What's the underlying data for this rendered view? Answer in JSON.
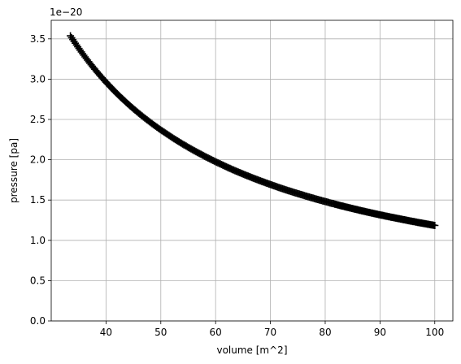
{
  "chart_data": {
    "type": "scatter",
    "marker": "+",
    "marker_color": "#000000",
    "grid": true,
    "xlabel": "volume [m^2]",
    "ylabel": "pressure [pa]",
    "y_offset_label": "1e−20",
    "xlim": [
      30,
      103.3
    ],
    "ylim": [
      0,
      3.73
    ],
    "xticks": [
      40,
      50,
      60,
      70,
      80,
      90,
      100
    ],
    "xtick_labels": [
      "40",
      "50",
      "60",
      "70",
      "80",
      "90",
      "100"
    ],
    "yticks": [
      0.0,
      0.5,
      1.0,
      1.5,
      2.0,
      2.5,
      3.0,
      3.5
    ],
    "ytick_labels": [
      "0.0",
      "0.5",
      "1.0",
      "1.5",
      "2.0",
      "2.5",
      "3.0",
      "3.5"
    ],
    "relation": "pressure = 118.5 / volume, in units of 1e-20 pa",
    "x_range": [
      33.5,
      100
    ],
    "point_count": 300
  }
}
